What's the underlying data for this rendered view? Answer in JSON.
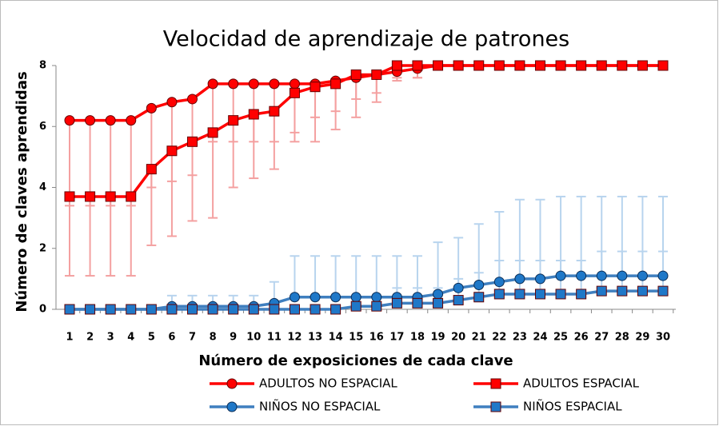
{
  "chart_data": {
    "type": "line",
    "title": "Velocidad de aprendizaje de patrones",
    "x_label": "Número de exposiciones de cada clave",
    "y_label": "Número de claves aprendidas",
    "categories": [
      "1",
      "2",
      "3",
      "4",
      "5",
      "6",
      "7",
      "8",
      "9",
      "10",
      "11",
      "12",
      "13",
      "14",
      "15",
      "16",
      "17",
      "18",
      "19",
      "20",
      "21",
      "22",
      "23",
      "24",
      "25",
      "26",
      "27",
      "28",
      "29",
      "30"
    ],
    "ylim": [
      0,
      8
    ],
    "yticks": [
      0,
      2,
      4,
      6,
      8
    ],
    "legend": "bottom",
    "series": [
      {
        "name": "ADULTOS NO ESPACIAL",
        "color": "#ff0000",
        "error_color": "#f4a0a0",
        "marker": "circle",
        "error_side": "minus",
        "values": [
          6.2,
          6.2,
          6.2,
          6.2,
          6.6,
          6.8,
          6.9,
          7.4,
          7.4,
          7.4,
          7.4,
          7.4,
          7.4,
          7.5,
          7.6,
          7.7,
          7.8,
          7.9,
          8,
          8,
          8,
          8,
          8,
          8,
          8,
          8,
          8,
          8,
          8,
          8
        ],
        "errors": [
          2.8,
          2.8,
          2.8,
          2.8,
          2.6,
          2.6,
          2.5,
          1.9,
          1.9,
          1.9,
          1.9,
          1.6,
          1.1,
          1.0,
          0.7,
          0.6,
          0.3,
          0.3,
          0,
          0,
          0,
          0,
          0,
          0,
          0,
          0,
          0,
          0,
          0,
          0
        ]
      },
      {
        "name": "ADULTOS ESPACIAL",
        "color": "#ff0000",
        "error_color": "#f4a0a0",
        "marker": "square",
        "error_side": "minus",
        "values": [
          3.7,
          3.7,
          3.7,
          3.7,
          4.6,
          5.2,
          5.5,
          5.8,
          6.2,
          6.4,
          6.5,
          7.1,
          7.3,
          7.4,
          7.7,
          7.7,
          8,
          8,
          8,
          8,
          8,
          8,
          8,
          8,
          8,
          8,
          8,
          8,
          8,
          8
        ],
        "errors": [
          2.6,
          2.6,
          2.6,
          2.6,
          2.5,
          2.8,
          2.6,
          2.8,
          2.2,
          2.1,
          1.9,
          1.6,
          1.8,
          1.5,
          1.4,
          0.9,
          0.4,
          0.4,
          0,
          0,
          0,
          0,
          0,
          0,
          0,
          0,
          0,
          0,
          0,
          0
        ]
      },
      {
        "name": "NIÑOS NO ESPACIAL",
        "color": "#3f7fbf",
        "error_color": "#b8d4ee",
        "marker": "circle",
        "error_side": "plus",
        "values": [
          0,
          0,
          0,
          0,
          0,
          0.1,
          0.1,
          0.1,
          0.1,
          0.1,
          0.2,
          0.4,
          0.4,
          0.4,
          0.4,
          0.4,
          0.4,
          0.4,
          0.5,
          0.7,
          0.8,
          0.9,
          1.0,
          1.0,
          1.1,
          1.1,
          1.1,
          1.1,
          1.1,
          1.1
        ],
        "errors": [
          0,
          0,
          0,
          0,
          0,
          0.35,
          0.35,
          0.35,
          0.35,
          0.35,
          0.7,
          1.35,
          1.35,
          1.35,
          1.35,
          1.35,
          1.35,
          1.35,
          1.7,
          1.65,
          2.0,
          2.3,
          2.6,
          2.6,
          2.6,
          2.6,
          2.6,
          2.6,
          2.6,
          2.6
        ]
      },
      {
        "name": "NIÑOS ESPACIAL",
        "color": "#3f7fbf",
        "error_color": "#b8d4ee",
        "marker": "square",
        "error_side": "plus",
        "values": [
          0,
          0,
          0,
          0,
          0,
          0,
          0,
          0,
          0,
          0,
          0,
          0,
          0,
          0,
          0.1,
          0.1,
          0.2,
          0.2,
          0.2,
          0.3,
          0.4,
          0.5,
          0.5,
          0.5,
          0.5,
          0.5,
          0.6,
          0.6,
          0.6,
          0.6
        ],
        "errors": [
          0,
          0,
          0,
          0,
          0,
          0,
          0,
          0,
          0,
          0,
          0,
          0,
          0,
          0,
          0.3,
          0.3,
          0.5,
          0.5,
          0.5,
          0.7,
          0.8,
          1.1,
          1.1,
          1.1,
          1.1,
          1.1,
          1.3,
          1.3,
          1.3,
          1.3
        ]
      }
    ]
  }
}
